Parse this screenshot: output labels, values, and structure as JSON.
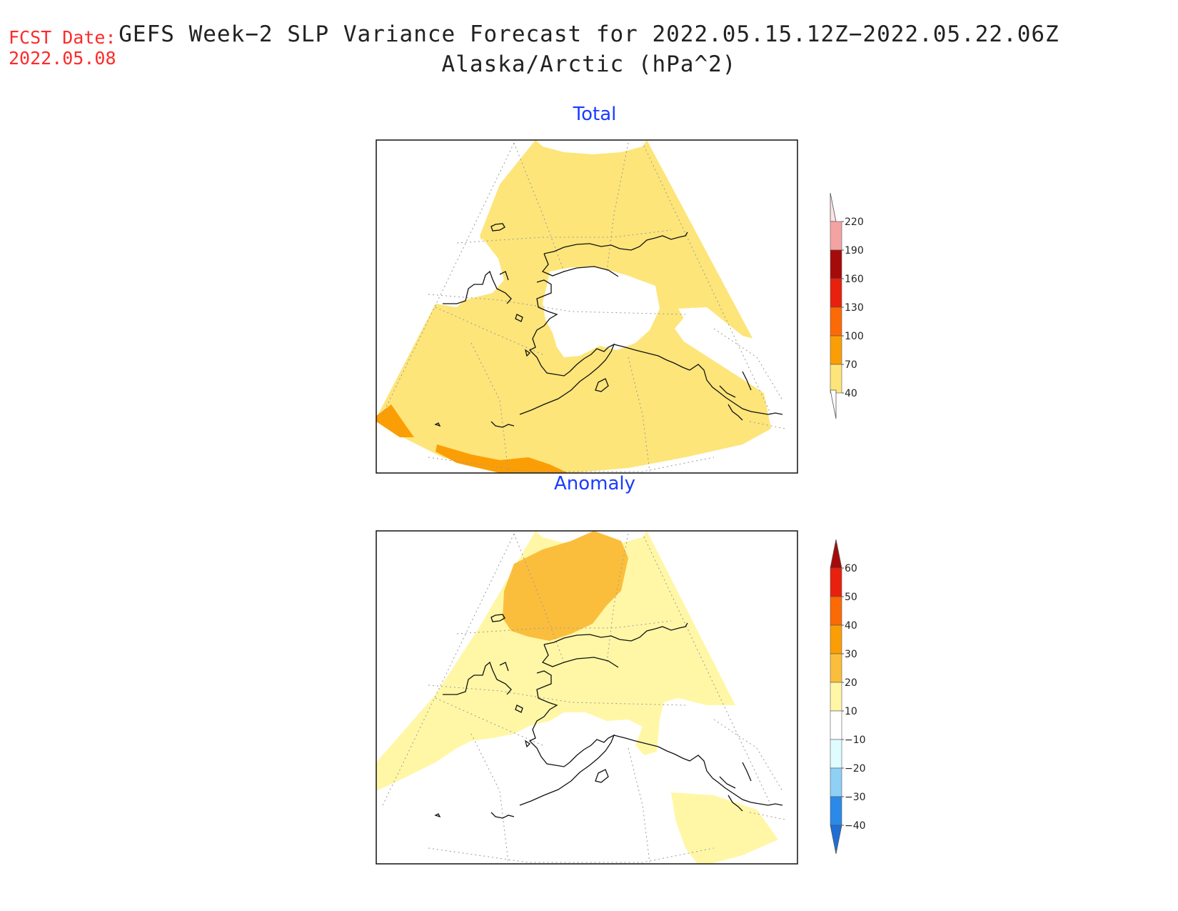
{
  "header": {
    "fcst_label": "FCST Date:",
    "fcst_date": "2022.05.08",
    "title_line1": "GEFS Week−2 SLP Variance Forecast for 2022.05.15.12Z−2022.05.22.06Z",
    "title_line2": "Alaska/Arctic (hPa^2)"
  },
  "panels": {
    "total": {
      "title": "Total",
      "colorbar": {
        "levels": [
          "40",
          "70",
          "100",
          "130",
          "160",
          "190",
          "220"
        ],
        "colors": [
          "#fde57a",
          "#fb9e05",
          "#fb6a05",
          "#e8200d",
          "#a50b0b",
          "#f4a3a3",
          "#fde3e3"
        ]
      }
    },
    "anomaly": {
      "title": "Anomaly",
      "colorbar": {
        "levels": [
          "60",
          "50",
          "40",
          "30",
          "20",
          "10",
          "−10",
          "−20",
          "−30",
          "−40"
        ],
        "colors": [
          "#a50b0b",
          "#e8200d",
          "#fb6a05",
          "#fb9e05",
          "#fbbe3c",
          "#fff7a6",
          "#ffffff",
          "#dffcff",
          "#8fd0f5",
          "#2b8ae8",
          "#1f6fd6"
        ]
      }
    }
  }
}
